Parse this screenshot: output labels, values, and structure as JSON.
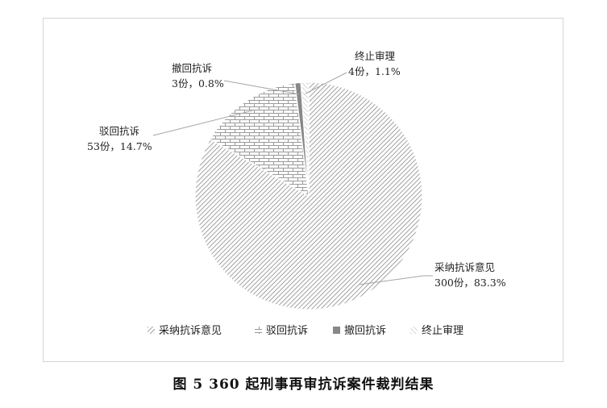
{
  "chart_data": {
    "type": "pie",
    "categories": [
      "采纳抗诉意见",
      "驳回抗诉",
      "撤回抗诉",
      "终止审理"
    ],
    "values": [
      300,
      53,
      3,
      4
    ],
    "percents": [
      "83.3%",
      "14.7%",
      "0.8%",
      "1.1%"
    ],
    "data_labels": [
      {
        "name": "采纳抗诉意见",
        "detail": "300份，83.3%"
      },
      {
        "name": "驳回抗诉",
        "detail": "53份，14.7%"
      },
      {
        "name": "撤回抗诉",
        "detail": "3份，0.8%"
      },
      {
        "name": "终止审理",
        "detail": "4份，1.1%"
      }
    ],
    "legend": [
      "采纳抗诉意见",
      "驳回抗诉",
      "撤回抗诉",
      "终止审理"
    ],
    "legend_position": "bottom",
    "colors": [
      "#8a8a8a",
      "#9a9a9a",
      "#888888",
      "#b0b0b0"
    ],
    "title": "图 5    360 起刑事再审抗诉案件裁判结果"
  }
}
